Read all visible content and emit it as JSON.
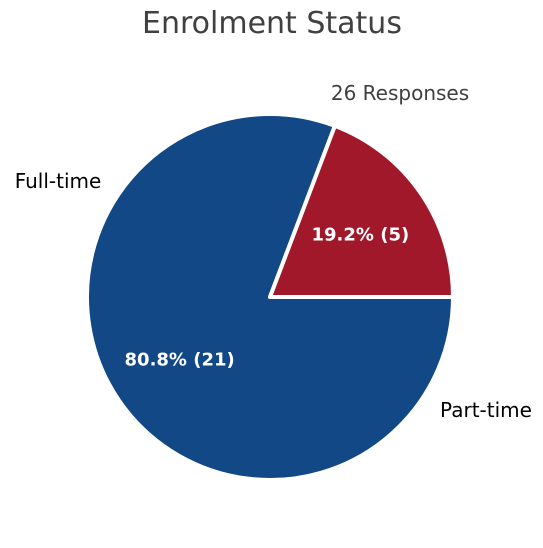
{
  "chart_data": {
    "type": "pie",
    "title": "Enrolment Status",
    "subtitle": "26 Responses",
    "categories": [
      "Full-time",
      "Part-time"
    ],
    "values": [
      21,
      5
    ],
    "data_labels": [
      "80.8% (21)",
      "19.2% (5)"
    ],
    "colors": [
      "#124885",
      "#A2182B"
    ],
    "slice_outline_color": "#ffffff",
    "start_angle": "3 o'clock, clockwise"
  }
}
